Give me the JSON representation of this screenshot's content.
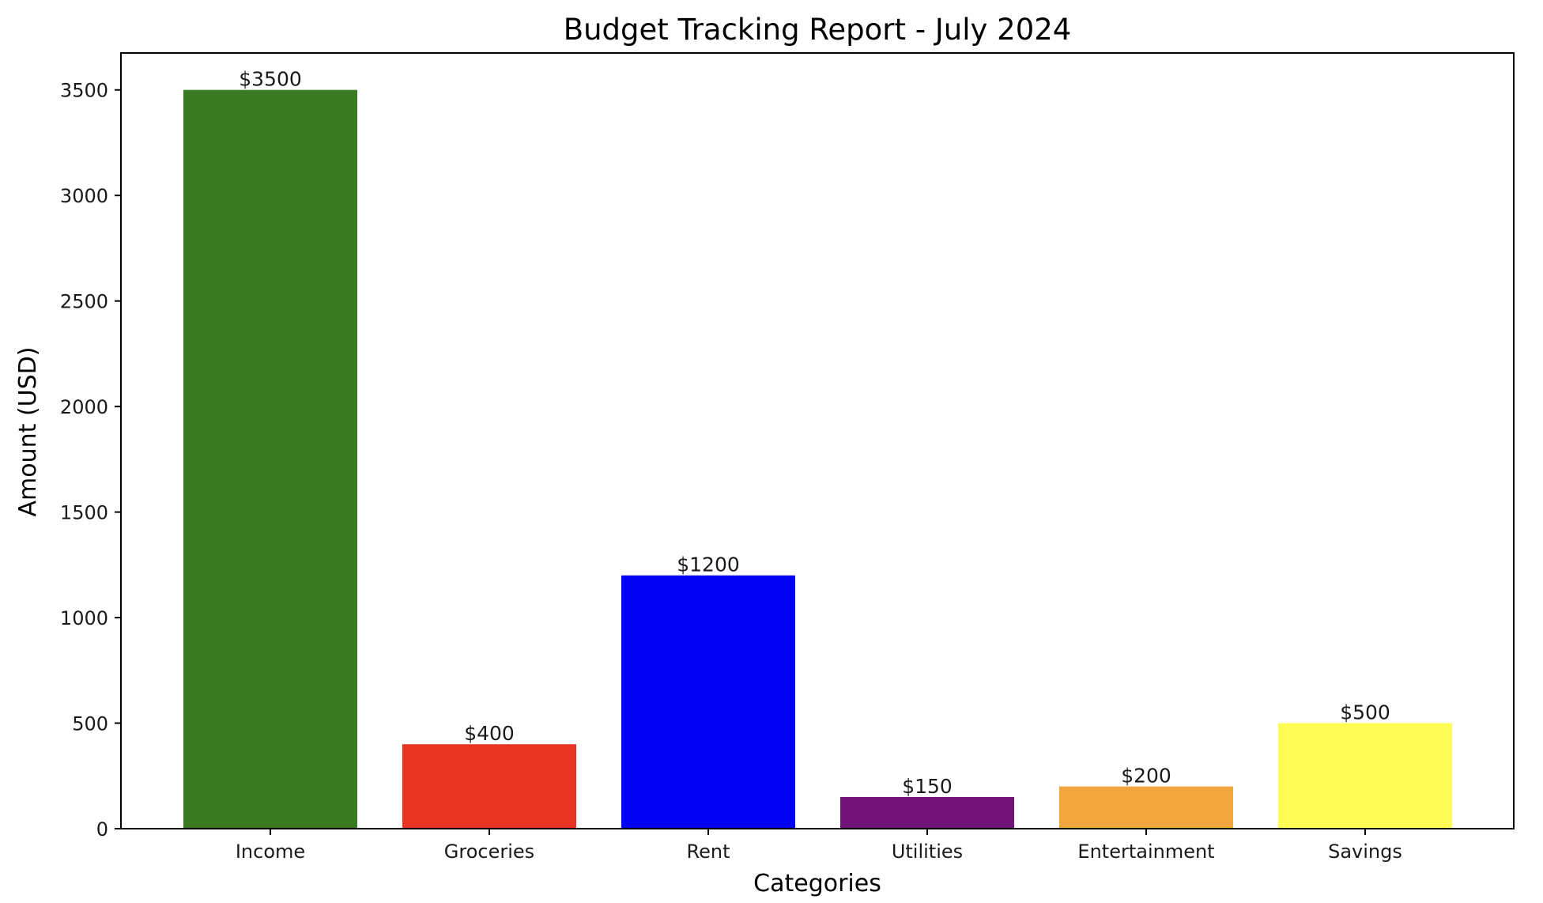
{
  "chart_data": {
    "type": "bar",
    "title": "Budget Tracking Report - July 2024",
    "xlabel": "Categories",
    "ylabel": "Amount (USD)",
    "categories": [
      "Income",
      "Groceries",
      "Rent",
      "Utilities",
      "Entertainment",
      "Savings"
    ],
    "values": [
      3500,
      400,
      1200,
      150,
      200,
      500
    ],
    "value_labels": [
      "$3500",
      "$400",
      "$1200",
      "$150",
      "$200",
      "$500"
    ],
    "colors": [
      "#387b20",
      "#e83323",
      "#0000f5",
      "#721378",
      "#f0a63d",
      "#fffd55"
    ],
    "yticks": [
      0,
      500,
      1000,
      1500,
      2000,
      2500,
      3000,
      3500
    ],
    "ytick_labels": [
      "0",
      "500",
      "1000",
      "1500",
      "2000",
      "2500",
      "3000",
      "3500"
    ],
    "ylim": [
      0,
      3675
    ],
    "grid": false,
    "legend": false
  }
}
